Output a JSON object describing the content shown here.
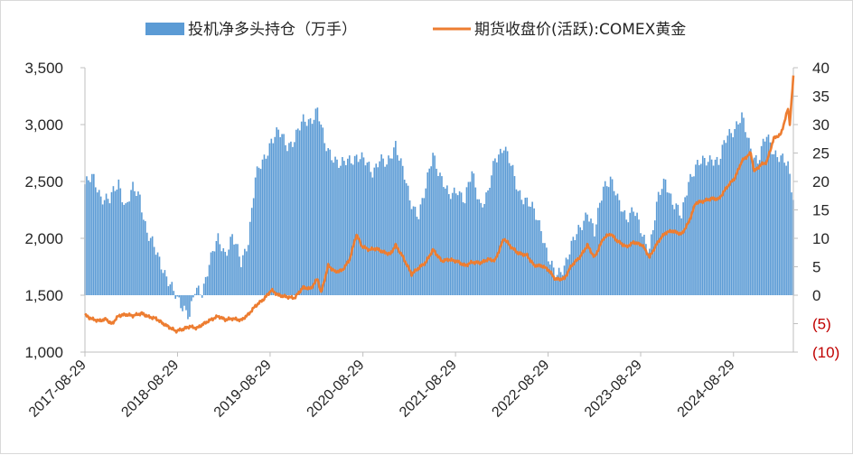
{
  "chart_data": {
    "type": "bar+line",
    "title": "",
    "legend": [
      {
        "name": "投机净多头持仓（万手）",
        "kind": "bar",
        "color": "#5b9bd5",
        "axis": "right"
      },
      {
        "name": "期货收盘价(活跃):COMEX黄金",
        "kind": "line",
        "color": "#ed7d31",
        "axis": "left"
      }
    ],
    "legend_position": "top",
    "grid": false,
    "x_axis": {
      "type": "date",
      "range": [
        "2017-08-29",
        "2025-04-22"
      ],
      "tick_labels": [
        "2017-08-29",
        "2018-08-29",
        "2019-08-29",
        "2020-08-29",
        "2021-08-29",
        "2022-08-29",
        "2023-08-29",
        "2024-08-29"
      ]
    },
    "y_left": {
      "range": [
        1000,
        3500
      ],
      "tick_labels": [
        "1,000",
        "1,500",
        "2,000",
        "2,500",
        "3,000",
        "3,500"
      ]
    },
    "y_right": {
      "range": [
        -10,
        40
      ],
      "tick_labels": [
        "(10)",
        "(5)",
        "0",
        "5",
        "10",
        "15",
        "20",
        "25",
        "30",
        "35",
        "40"
      ],
      "negative_color": "#c00000"
    },
    "series_bar": {
      "name": "投机净多头持仓（万手）",
      "points": [
        [
          "2017-08-29",
          19.5
        ],
        [
          "2017-10-01",
          20.5
        ],
        [
          "2017-11-01",
          17.5
        ],
        [
          "2017-12-05",
          16.5
        ],
        [
          "2018-01-09",
          20
        ],
        [
          "2018-02-06",
          15.5
        ],
        [
          "2018-03-06",
          18.5
        ],
        [
          "2018-04-03",
          17.5
        ],
        [
          "2018-05-01",
          11
        ],
        [
          "2018-06-05",
          7.5
        ],
        [
          "2018-07-03",
          5
        ],
        [
          "2018-08-07",
          1
        ],
        [
          "2018-08-28",
          -1
        ],
        [
          "2018-09-25",
          -2
        ],
        [
          "2018-10-16",
          -3.5
        ],
        [
          "2018-11-06",
          0.5
        ],
        [
          "2018-12-04",
          0.5
        ],
        [
          "2019-01-01",
          6
        ],
        [
          "2019-02-05",
          9.5
        ],
        [
          "2019-03-05",
          7.5
        ],
        [
          "2019-04-02",
          10.5
        ],
        [
          "2019-05-07",
          5.5
        ],
        [
          "2019-06-04",
          10
        ],
        [
          "2019-07-02",
          20.5
        ],
        [
          "2019-08-06",
          24
        ],
        [
          "2019-09-03",
          27.5
        ],
        [
          "2019-10-01",
          28.5
        ],
        [
          "2019-11-05",
          26.5
        ],
        [
          "2019-12-03",
          27.5
        ],
        [
          "2020-01-07",
          30.5
        ],
        [
          "2020-02-04",
          31
        ],
        [
          "2020-03-03",
          32.5
        ],
        [
          "2020-03-31",
          26.5
        ],
        [
          "2020-05-05",
          24.5
        ],
        [
          "2020-06-02",
          22.5
        ],
        [
          "2020-07-07",
          24
        ],
        [
          "2020-08-04",
          24.5
        ],
        [
          "2020-09-01",
          23.5
        ],
        [
          "2020-10-06",
          22
        ],
        [
          "2020-11-03",
          24
        ],
        [
          "2020-12-01",
          22.5
        ],
        [
          "2021-01-05",
          27
        ],
        [
          "2021-02-02",
          22
        ],
        [
          "2021-03-02",
          16.5
        ],
        [
          "2021-04-06",
          14.5
        ],
        [
          "2021-05-04",
          18.5
        ],
        [
          "2021-06-01",
          25
        ],
        [
          "2021-07-06",
          20.5
        ],
        [
          "2021-08-03",
          17
        ],
        [
          "2021-09-07",
          19
        ],
        [
          "2021-10-05",
          16.5
        ],
        [
          "2021-11-02",
          21.5
        ],
        [
          "2021-12-07",
          16
        ],
        [
          "2022-01-04",
          17.5
        ],
        [
          "2022-02-01",
          24
        ],
        [
          "2022-03-08",
          26.5
        ],
        [
          "2022-04-05",
          22.5
        ],
        [
          "2022-05-03",
          18.5
        ],
        [
          "2022-06-07",
          16.5
        ],
        [
          "2022-07-05",
          14.5
        ],
        [
          "2022-08-02",
          12
        ],
        [
          "2022-08-30",
          6.5
        ],
        [
          "2022-09-27",
          3
        ],
        [
          "2022-11-01",
          5.5
        ],
        [
          "2022-11-29",
          8.5
        ],
        [
          "2023-01-03",
          12
        ],
        [
          "2023-01-31",
          15
        ],
        [
          "2023-02-28",
          10.5
        ],
        [
          "2023-04-04",
          19.5
        ],
        [
          "2023-05-02",
          20.5
        ],
        [
          "2023-05-30",
          16.5
        ],
        [
          "2023-07-04",
          14
        ],
        [
          "2023-08-01",
          15
        ],
        [
          "2023-09-05",
          10.5
        ],
        [
          "2023-10-03",
          8.5
        ],
        [
          "2023-11-07",
          17
        ],
        [
          "2023-12-05",
          20.5
        ],
        [
          "2024-01-02",
          16.5
        ],
        [
          "2024-02-06",
          13.5
        ],
        [
          "2024-03-05",
          20.5
        ],
        [
          "2024-04-02",
          22.5
        ],
        [
          "2024-05-07",
          23.5
        ],
        [
          "2024-06-04",
          24.5
        ],
        [
          "2024-07-02",
          23
        ],
        [
          "2024-08-06",
          28.5
        ],
        [
          "2024-09-03",
          29.5
        ],
        [
          "2024-10-01",
          31
        ],
        [
          "2024-11-05",
          26
        ],
        [
          "2024-12-03",
          23.5
        ],
        [
          "2025-01-07",
          28
        ],
        [
          "2025-02-04",
          25.5
        ],
        [
          "2025-03-04",
          24
        ],
        [
          "2025-04-01",
          22.5
        ],
        [
          "2025-04-22",
          17.5
        ]
      ]
    },
    "series_line": {
      "name": "期货收盘价(活跃):COMEX黄金",
      "points": [
        [
          "2017-08-29",
          1325
        ],
        [
          "2017-09-26",
          1290
        ],
        [
          "2017-10-24",
          1275
        ],
        [
          "2017-11-21",
          1290
        ],
        [
          "2017-12-12",
          1245
        ],
        [
          "2018-01-09",
          1320
        ],
        [
          "2018-02-06",
          1330
        ],
        [
          "2018-03-06",
          1320
        ],
        [
          "2018-04-10",
          1340
        ],
        [
          "2018-05-08",
          1310
        ],
        [
          "2018-06-05",
          1295
        ],
        [
          "2018-07-03",
          1250
        ],
        [
          "2018-08-07",
          1205
        ],
        [
          "2018-08-21",
          1185
        ],
        [
          "2018-09-18",
          1200
        ],
        [
          "2018-10-16",
          1225
        ],
        [
          "2018-11-13",
          1210
        ],
        [
          "2018-12-11",
          1250
        ],
        [
          "2019-01-08",
          1285
        ],
        [
          "2019-02-05",
          1315
        ],
        [
          "2019-03-05",
          1285
        ],
        [
          "2019-04-02",
          1295
        ],
        [
          "2019-05-07",
          1280
        ],
        [
          "2019-06-04",
          1330
        ],
        [
          "2019-07-02",
          1405
        ],
        [
          "2019-08-06",
          1470
        ],
        [
          "2019-09-03",
          1545
        ],
        [
          "2019-10-01",
          1500
        ],
        [
          "2019-11-05",
          1485
        ],
        [
          "2019-12-03",
          1475
        ],
        [
          "2020-01-07",
          1570
        ],
        [
          "2020-02-04",
          1555
        ],
        [
          "2020-03-03",
          1645
        ],
        [
          "2020-03-17",
          1520
        ],
        [
          "2020-04-14",
          1760
        ],
        [
          "2020-05-12",
          1705
        ],
        [
          "2020-06-09",
          1720
        ],
        [
          "2020-07-07",
          1810
        ],
        [
          "2020-08-04",
          2035
        ],
        [
          "2020-08-25",
          1930
        ],
        [
          "2020-09-22",
          1900
        ],
        [
          "2020-10-20",
          1910
        ],
        [
          "2020-11-17",
          1880
        ],
        [
          "2020-12-15",
          1860
        ],
        [
          "2021-01-05",
          1940
        ],
        [
          "2021-02-02",
          1840
        ],
        [
          "2021-03-09",
          1685
        ],
        [
          "2021-04-06",
          1740
        ],
        [
          "2021-05-04",
          1790
        ],
        [
          "2021-06-01",
          1900
        ],
        [
          "2021-07-06",
          1800
        ],
        [
          "2021-08-03",
          1815
        ],
        [
          "2021-09-07",
          1795
        ],
        [
          "2021-10-05",
          1760
        ],
        [
          "2021-11-02",
          1790
        ],
        [
          "2021-12-07",
          1785
        ],
        [
          "2022-01-04",
          1815
        ],
        [
          "2022-02-01",
          1805
        ],
        [
          "2022-03-08",
          2000
        ],
        [
          "2022-04-05",
          1925
        ],
        [
          "2022-05-03",
          1870
        ],
        [
          "2022-06-07",
          1850
        ],
        [
          "2022-07-05",
          1760
        ],
        [
          "2022-08-02",
          1760
        ],
        [
          "2022-08-30",
          1725
        ],
        [
          "2022-09-27",
          1640
        ],
        [
          "2022-11-01",
          1645
        ],
        [
          "2022-11-29",
          1760
        ],
        [
          "2023-01-03",
          1840
        ],
        [
          "2023-01-31",
          1940
        ],
        [
          "2023-02-28",
          1830
        ],
        [
          "2023-04-04",
          2000
        ],
        [
          "2023-05-02",
          2040
        ],
        [
          "2023-05-30",
          1975
        ],
        [
          "2023-07-04",
          1925
        ],
        [
          "2023-08-01",
          1965
        ],
        [
          "2023-09-05",
          1940
        ],
        [
          "2023-10-03",
          1835
        ],
        [
          "2023-11-07",
          1975
        ],
        [
          "2023-12-05",
          2050
        ],
        [
          "2024-01-02",
          2065
        ],
        [
          "2024-02-06",
          2035
        ],
        [
          "2024-03-05",
          2140
        ],
        [
          "2024-04-02",
          2310
        ],
        [
          "2024-05-07",
          2330
        ],
        [
          "2024-06-04",
          2350
        ],
        [
          "2024-07-02",
          2345
        ],
        [
          "2024-08-06",
          2460
        ],
        [
          "2024-09-03",
          2530
        ],
        [
          "2024-10-01",
          2680
        ],
        [
          "2024-11-05",
          2750
        ],
        [
          "2024-11-19",
          2590
        ],
        [
          "2024-12-17",
          2650
        ],
        [
          "2025-01-07",
          2670
        ],
        [
          "2025-02-04",
          2880
        ],
        [
          "2025-03-04",
          2915
        ],
        [
          "2025-04-01",
          3140
        ],
        [
          "2025-04-08",
          3010
        ],
        [
          "2025-04-22",
          3420
        ]
      ]
    }
  }
}
